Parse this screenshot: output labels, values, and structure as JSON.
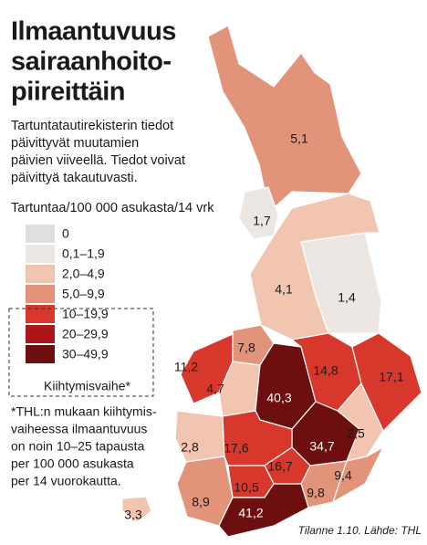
{
  "title": [
    "Ilmaantuvuus",
    "sairaanhoito-",
    "piireittäin"
  ],
  "description": [
    "Tartuntatautirekisterin tiedot",
    "päivittyvät muutamien",
    "päivien viiveellä. Tiedot voivat",
    "päivittyä takautuvasti."
  ],
  "legend": {
    "title": "Tartuntaa/100 000 asukasta/14 vrk",
    "items": [
      {
        "label": "0",
        "range": [
          0,
          0
        ],
        "color": "#e0dfdf"
      },
      {
        "label": "0,1–1,9",
        "range": [
          0.1,
          1.9
        ],
        "color": "#ede7e4"
      },
      {
        "label": "2,0–4,9",
        "range": [
          2.0,
          4.9
        ],
        "color": "#f2c5b1"
      },
      {
        "label": "5,0–9,9",
        "range": [
          5.0,
          9.9
        ],
        "color": "#e2947a"
      },
      {
        "label": "10–19,9",
        "range": [
          10,
          19.9
        ],
        "color": "#d8382b"
      },
      {
        "label": "20–29,9",
        "range": [
          20,
          29.9
        ],
        "color": "#ae1519"
      },
      {
        "label": "30–49,9",
        "range": [
          30,
          49.9
        ],
        "color": "#6d0f0f"
      }
    ],
    "group_label": "Kiihtymisvaihe*"
  },
  "regions": [
    {
      "value": 5.1,
      "label": "5,1"
    },
    {
      "value": 1.7,
      "label": "1,7"
    },
    {
      "value": 4.1,
      "label": "4,1"
    },
    {
      "value": 1.4,
      "label": "1,4"
    },
    {
      "value": 7.8,
      "label": "7,8"
    },
    {
      "value": 11.2,
      "label": "11,2"
    },
    {
      "value": 4.7,
      "label": "4,7"
    },
    {
      "value": 40.3,
      "label": "40,3"
    },
    {
      "value": 14.8,
      "label": "14,8"
    },
    {
      "value": 17.1,
      "label": "17,1"
    },
    {
      "value": 34.7,
      "label": "34,7"
    },
    {
      "value": 2.5,
      "label": "2,5"
    },
    {
      "value": 2.8,
      "label": "2,8"
    },
    {
      "value": 17.6,
      "label": "17,6"
    },
    {
      "value": 16.7,
      "label": "16,7"
    },
    {
      "value": 10.5,
      "label": "10,5"
    },
    {
      "value": 9.8,
      "label": "9,8"
    },
    {
      "value": 9.4,
      "label": "9,4"
    },
    {
      "value": 8.9,
      "label": "8,9"
    },
    {
      "value": 41.2,
      "label": "41,2"
    },
    {
      "value": 3.3,
      "label": "3,3"
    }
  ],
  "footnote": [
    "*THL:n mukaan kiihtymis-",
    "vaiheessa ilmaantuvuus",
    "on noin 10–25 tapausta",
    "per 100 000 asukasta",
    "per 14 vuorokautta."
  ],
  "source": "Tilanne 1.10. Lähde: THL"
}
